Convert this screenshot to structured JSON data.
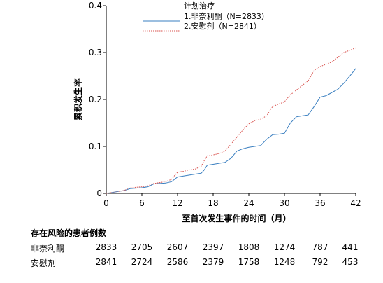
{
  "chart_data": {
    "type": "line",
    "title": "",
    "xlabel": "至首次发生事件的时间（月）",
    "ylabel": "累积发生率",
    "xlim": [
      0,
      42
    ],
    "ylim": [
      0,
      0.4
    ],
    "xticks": [
      0,
      6,
      12,
      18,
      24,
      30,
      36,
      42
    ],
    "yticks": [
      0,
      0.1,
      0.2,
      0.3,
      0.4
    ],
    "ytick_labels": [
      "0",
      "0.1",
      "0.2",
      "0.3",
      "0.4"
    ],
    "legend": {
      "title": "计划治疗",
      "placement": "top-center"
    },
    "series": [
      {
        "name": "1.非奈利酮（N=2833）",
        "color": "#3a7fc0",
        "style": "solid",
        "points": [
          [
            0,
            0
          ],
          [
            1,
            0.002
          ],
          [
            2,
            0.004
          ],
          [
            3,
            0.006
          ],
          [
            3.5,
            0.008
          ],
          [
            4,
            0.01
          ],
          [
            5,
            0.011
          ],
          [
            6,
            0.012
          ],
          [
            7,
            0.014
          ],
          [
            7.5,
            0.017
          ],
          [
            8,
            0.02
          ],
          [
            9,
            0.021
          ],
          [
            10,
            0.022
          ],
          [
            11,
            0.025
          ],
          [
            11.5,
            0.03
          ],
          [
            12,
            0.035
          ],
          [
            13,
            0.037
          ],
          [
            14,
            0.039
          ],
          [
            15,
            0.041
          ],
          [
            16,
            0.043
          ],
          [
            16.5,
            0.05
          ],
          [
            17,
            0.06
          ],
          [
            18,
            0.062
          ],
          [
            19,
            0.064
          ],
          [
            20,
            0.066
          ],
          [
            21,
            0.075
          ],
          [
            22,
            0.09
          ],
          [
            23,
            0.095
          ],
          [
            24,
            0.098
          ],
          [
            25,
            0.1
          ],
          [
            26,
            0.102
          ],
          [
            27,
            0.115
          ],
          [
            28,
            0.125
          ],
          [
            29,
            0.126
          ],
          [
            30,
            0.128
          ],
          [
            31,
            0.15
          ],
          [
            32,
            0.163
          ],
          [
            33,
            0.165
          ],
          [
            34,
            0.167
          ],
          [
            35,
            0.185
          ],
          [
            36,
            0.205
          ],
          [
            37,
            0.208
          ],
          [
            38,
            0.215
          ],
          [
            39,
            0.222
          ],
          [
            40,
            0.235
          ],
          [
            41,
            0.25
          ],
          [
            42,
            0.266
          ]
        ]
      },
      {
        "name": "2.安慰剂（N=2841）",
        "color": "#d9534f",
        "style": "dotted",
        "points": [
          [
            0,
            0
          ],
          [
            1,
            0.002
          ],
          [
            2,
            0.004
          ],
          [
            3,
            0.006
          ],
          [
            3.5,
            0.009
          ],
          [
            4,
            0.012
          ],
          [
            5,
            0.013
          ],
          [
            6,
            0.014
          ],
          [
            7,
            0.016
          ],
          [
            7.5,
            0.019
          ],
          [
            8,
            0.021
          ],
          [
            9,
            0.023
          ],
          [
            10,
            0.025
          ],
          [
            11,
            0.03
          ],
          [
            11.5,
            0.038
          ],
          [
            12,
            0.045
          ],
          [
            13,
            0.047
          ],
          [
            14,
            0.05
          ],
          [
            15,
            0.052
          ],
          [
            16,
            0.058
          ],
          [
            16.5,
            0.07
          ],
          [
            17,
            0.08
          ],
          [
            18,
            0.082
          ],
          [
            19,
            0.085
          ],
          [
            20,
            0.09
          ],
          [
            21,
            0.105
          ],
          [
            22,
            0.12
          ],
          [
            23,
            0.135
          ],
          [
            24,
            0.148
          ],
          [
            25,
            0.155
          ],
          [
            26,
            0.158
          ],
          [
            27,
            0.165
          ],
          [
            28,
            0.185
          ],
          [
            29,
            0.19
          ],
          [
            30,
            0.195
          ],
          [
            31,
            0.21
          ],
          [
            32,
            0.22
          ],
          [
            33,
            0.23
          ],
          [
            34,
            0.24
          ],
          [
            35,
            0.262
          ],
          [
            36,
            0.27
          ],
          [
            37,
            0.275
          ],
          [
            38,
            0.28
          ],
          [
            39,
            0.29
          ],
          [
            40,
            0.3
          ],
          [
            41,
            0.305
          ],
          [
            42,
            0.31
          ]
        ]
      }
    ]
  },
  "risk_table": {
    "title": "存在风险的患者例数",
    "rows": [
      {
        "label": "非奈利酮",
        "values": [
          "2833",
          "2705",
          "2607",
          "2397",
          "1808",
          "1274",
          "787",
          "441"
        ]
      },
      {
        "label": "安慰剂",
        "values": [
          "2841",
          "2724",
          "2586",
          "2379",
          "1758",
          "1248",
          "792",
          "453"
        ]
      }
    ]
  }
}
